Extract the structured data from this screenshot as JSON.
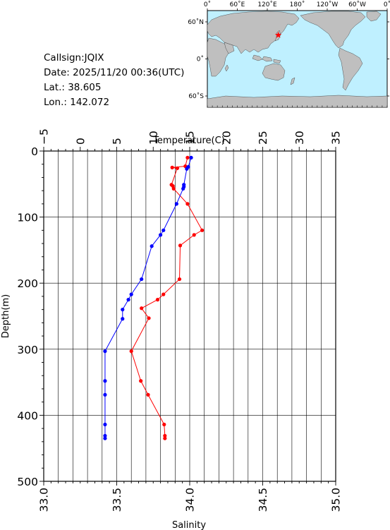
{
  "info": {
    "callsign": "Callsign:JQIX",
    "date": "Date:  2025/11/20 00:36(UTC)",
    "lat": "Lat.:   38.605",
    "lon": "Lon.:  142.072"
  },
  "map": {
    "top_labels": [
      "0˚",
      "60˚E",
      "120˚E",
      "180˚",
      "120˚W",
      "60˚W",
      "0˚"
    ],
    "left_labels": [
      "60˚N",
      "0˚",
      "60˚S"
    ],
    "ocean_color": "#bff0ff",
    "land_color": "#bfbfbf",
    "marker": {
      "lon": 142.072,
      "lat": 38.605,
      "color": "#ff0000"
    }
  },
  "chart_data": {
    "type": "line",
    "temperature_axis": {
      "label": "Temperature(C)",
      "range": [
        -5,
        35
      ],
      "ticks": [
        "−5",
        "0",
        "5",
        "10",
        "15",
        "20",
        "25",
        "30",
        "35"
      ]
    },
    "salinity_axis": {
      "label": "Salinity",
      "range": [
        33.0,
        35.0
      ],
      "ticks": [
        "33.0",
        "33.5",
        "34.0",
        "34.5",
        "35.0"
      ]
    },
    "depth_axis": {
      "label": "Depth(m)",
      "range": [
        0,
        500
      ],
      "ticks": [
        "0",
        "100",
        "200",
        "300",
        "400",
        "500"
      ]
    },
    "grid": true,
    "series": [
      {
        "axis": "temperature",
        "color": "#ff0000",
        "points": [
          {
            "value": 14.7,
            "depth": 10
          },
          {
            "value": 14.4,
            "depth": 23
          },
          {
            "value": 12.6,
            "depth": 25
          },
          {
            "value": 13.3,
            "depth": 26
          },
          {
            "value": 12.5,
            "depth": 51
          },
          {
            "value": 12.7,
            "depth": 53
          },
          {
            "value": 12.8,
            "depth": 57
          },
          {
            "value": 14.7,
            "depth": 80
          },
          {
            "value": 16.7,
            "depth": 120
          },
          {
            "value": 15.6,
            "depth": 127
          },
          {
            "value": 13.7,
            "depth": 143
          },
          {
            "value": 13.6,
            "depth": 194
          },
          {
            "value": 11.4,
            "depth": 217
          },
          {
            "value": 10.6,
            "depth": 225
          },
          {
            "value": 8.4,
            "depth": 238
          },
          {
            "value": 9.4,
            "depth": 253
          },
          {
            "value": 7.0,
            "depth": 303
          },
          {
            "value": 8.3,
            "depth": 348
          },
          {
            "value": 9.3,
            "depth": 369
          },
          {
            "value": 11.5,
            "depth": 414
          },
          {
            "value": 11.6,
            "depth": 431
          },
          {
            "value": 11.6,
            "depth": 435
          }
        ]
      },
      {
        "axis": "salinity",
        "color": "#0000ff",
        "points": [
          {
            "value": 34.01,
            "depth": 10
          },
          {
            "value": 33.99,
            "depth": 24
          },
          {
            "value": 33.98,
            "depth": 27
          },
          {
            "value": 33.96,
            "depth": 51
          },
          {
            "value": 33.96,
            "depth": 54
          },
          {
            "value": 33.955,
            "depth": 57
          },
          {
            "value": 33.91,
            "depth": 80
          },
          {
            "value": 33.82,
            "depth": 120
          },
          {
            "value": 33.8,
            "depth": 127
          },
          {
            "value": 33.74,
            "depth": 144
          },
          {
            "value": 33.67,
            "depth": 194
          },
          {
            "value": 33.6,
            "depth": 217
          },
          {
            "value": 33.58,
            "depth": 225
          },
          {
            "value": 33.54,
            "depth": 240
          },
          {
            "value": 33.54,
            "depth": 254
          },
          {
            "value": 33.42,
            "depth": 303
          },
          {
            "value": 33.42,
            "depth": 348
          },
          {
            "value": 33.42,
            "depth": 369
          },
          {
            "value": 33.42,
            "depth": 414
          },
          {
            "value": 33.42,
            "depth": 431
          },
          {
            "value": 33.42,
            "depth": 435
          }
        ]
      }
    ]
  }
}
